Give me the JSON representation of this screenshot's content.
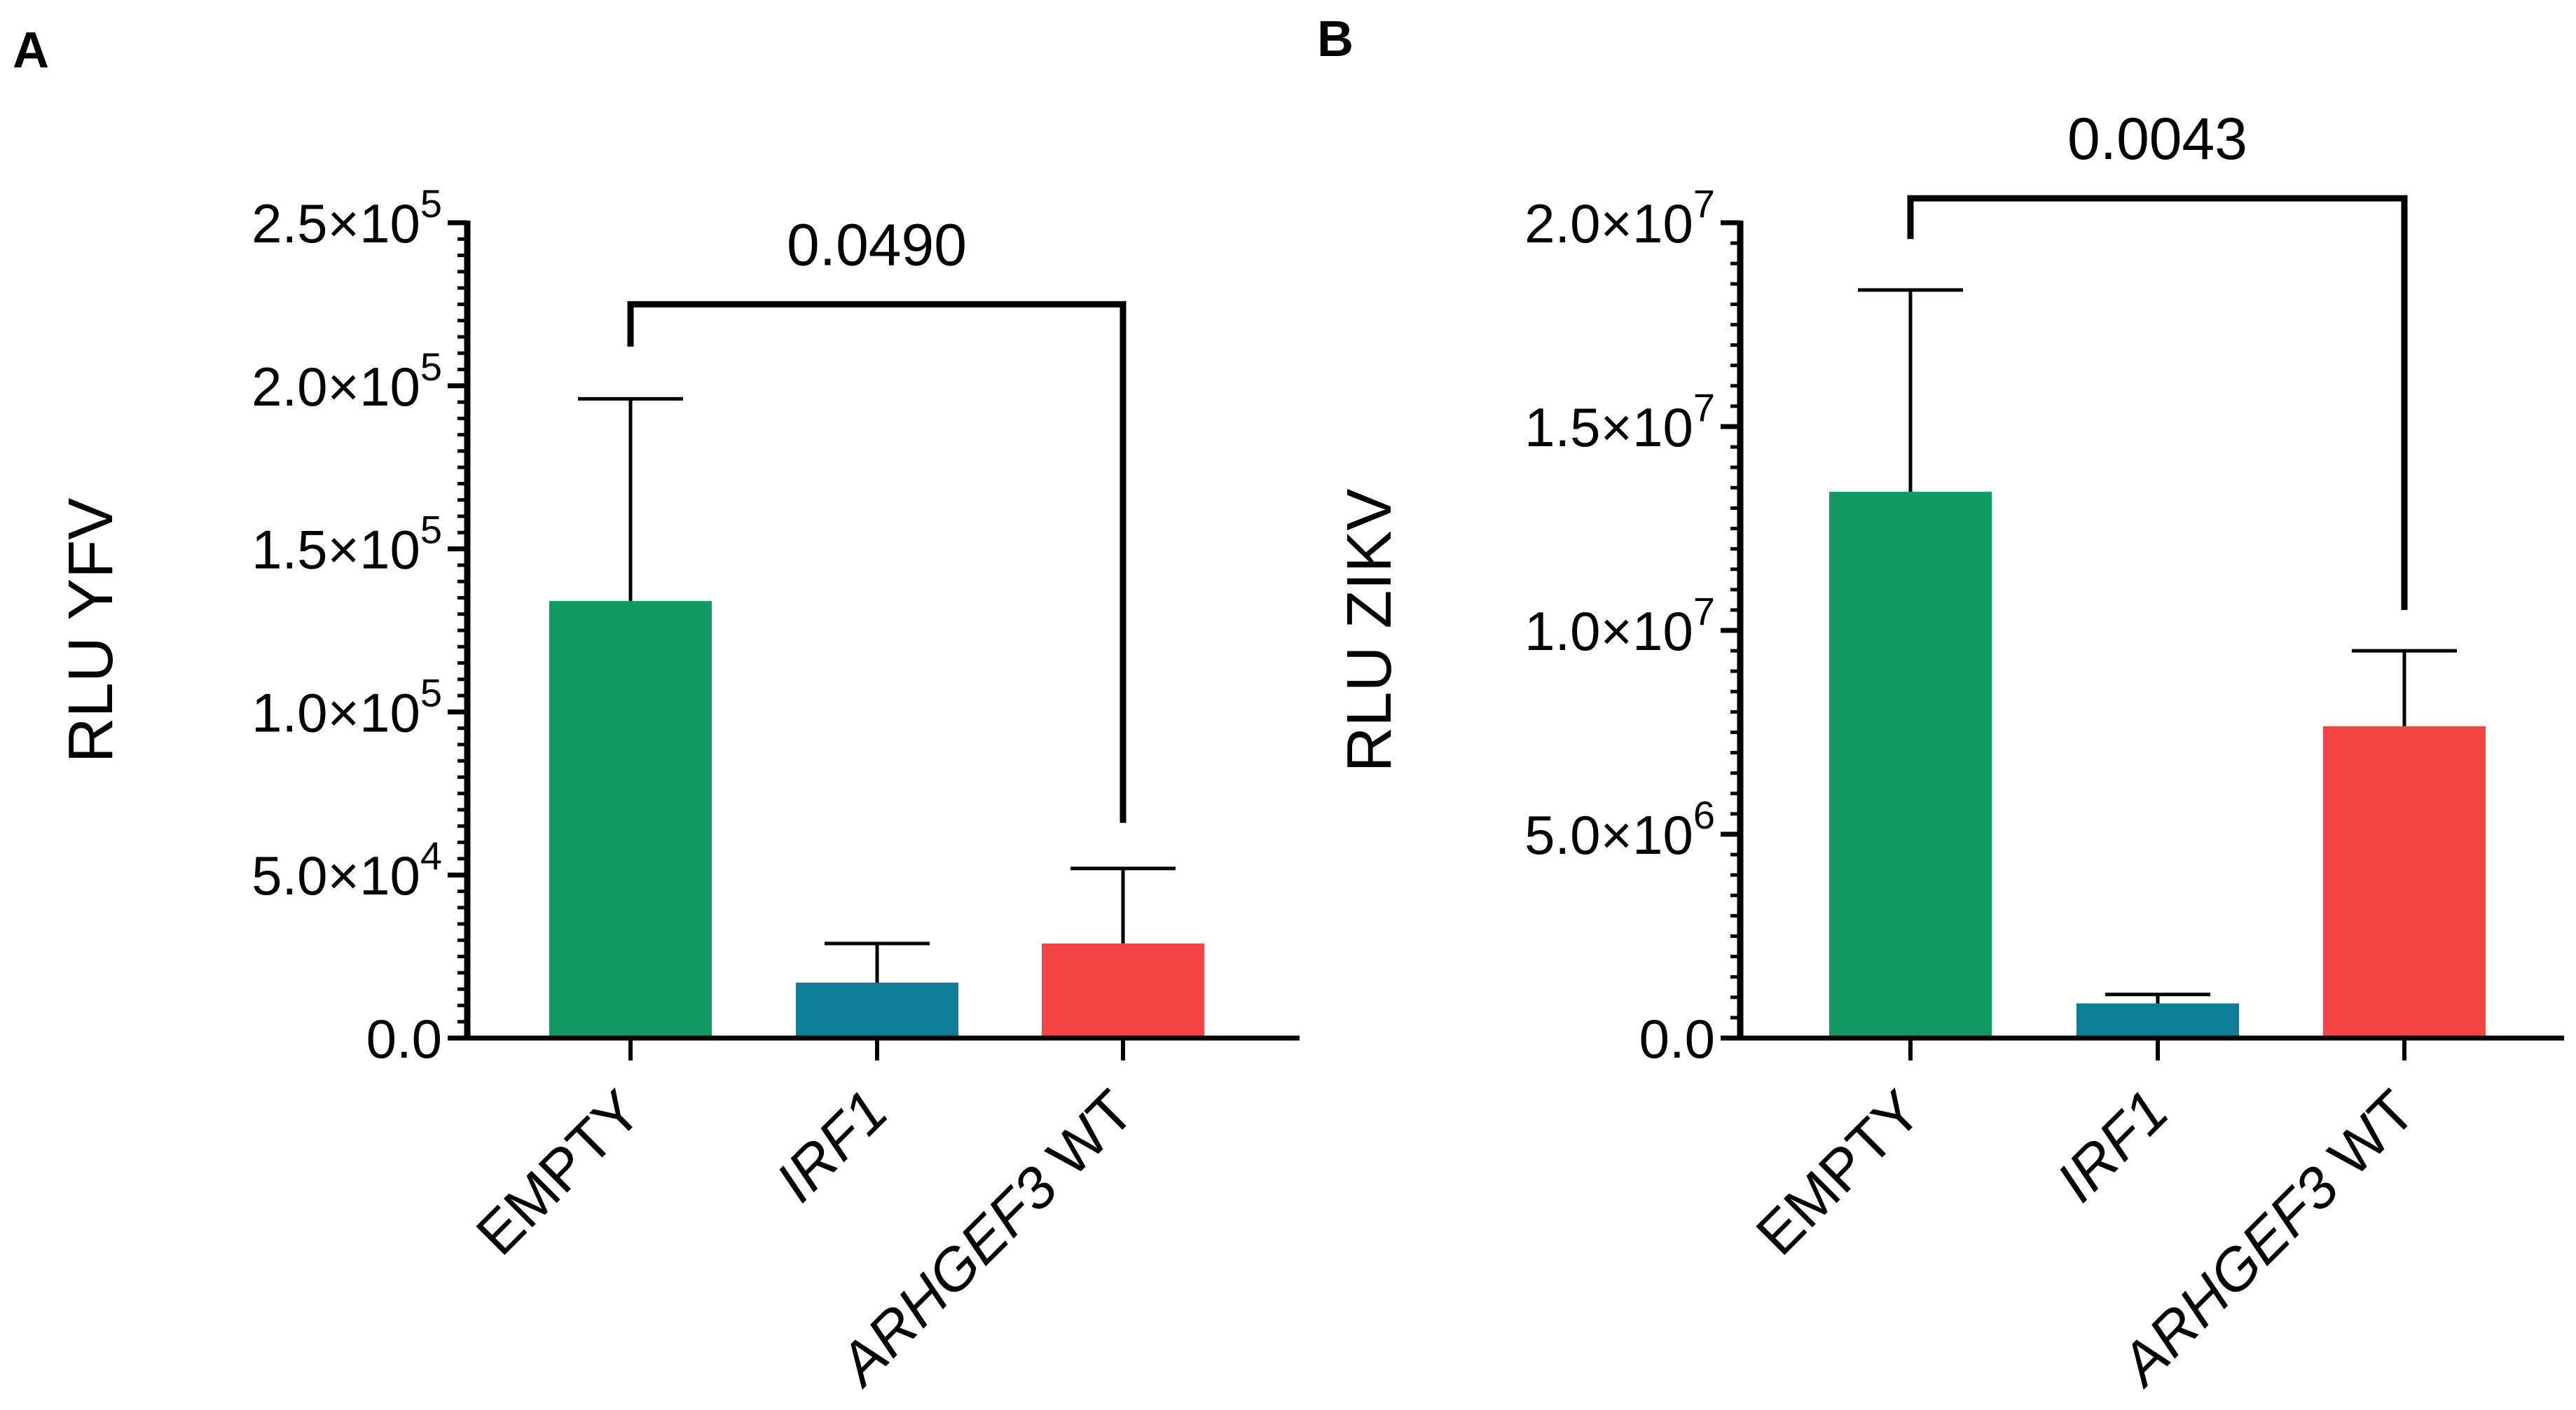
{
  "figure": {
    "panels": [
      "A",
      "B"
    ]
  },
  "chart_data": [
    {
      "panel": "A",
      "type": "bar",
      "title": "",
      "xlabel": "",
      "ylabel": "RLU YFV",
      "categories": [
        "EMPTY",
        "IRF1",
        "ARHGEF3 WT"
      ],
      "italic_categories": [
        "IRF1",
        "ARHGEF3"
      ],
      "category_parts": [
        [
          {
            "text": "EMPTY",
            "italic": false
          }
        ],
        [
          {
            "text": "IRF1",
            "italic": true
          }
        ],
        [
          {
            "text": "ARHGEF3",
            "italic": true
          },
          {
            "text": " WT",
            "italic": false
          }
        ]
      ],
      "values": [
        134000,
        17000,
        29000
      ],
      "errors": [
        62000,
        12000,
        23000
      ],
      "colors": [
        "#109960",
        "#0e7e97",
        "#f44444"
      ],
      "ylim": [
        0,
        250000
      ],
      "major_ticks": [
        0,
        50000,
        100000,
        150000,
        200000,
        250000
      ],
      "tick_labels": [
        {
          "mantissa": "0.0",
          "exp": ""
        },
        {
          "mantissa": "5.0×10",
          "exp": "4"
        },
        {
          "mantissa": "1.0×10",
          "exp": "5"
        },
        {
          "mantissa": "1.5×10",
          "exp": "5"
        },
        {
          "mantissa": "2.0×10",
          "exp": "5"
        },
        {
          "mantissa": "2.5×10",
          "exp": "5"
        }
      ],
      "minor_tick_count": 10,
      "comparison": {
        "from": 0,
        "to": 2,
        "label": "0.0490",
        "bracket_value": 225000,
        "from_drop": 212000,
        "to_drop": 66000
      }
    },
    {
      "panel": "B",
      "type": "bar",
      "title": "",
      "xlabel": "",
      "ylabel": "RLU ZIKV",
      "categories": [
        "EMPTY",
        "IRF1",
        "ARHGEF3 WT"
      ],
      "italic_categories": [
        "IRF1",
        "ARHGEF3"
      ],
      "category_parts": [
        [
          {
            "text": "EMPTY",
            "italic": false
          }
        ],
        [
          {
            "text": "IRF1",
            "italic": true
          }
        ],
        [
          {
            "text": "ARHGEF3",
            "italic": true
          },
          {
            "text": " WT",
            "italic": false
          }
        ]
      ],
      "values": [
        13400000,
        850000,
        7650000
      ],
      "errors": [
        4950000,
        220000,
        1850000
      ],
      "colors": [
        "#109960",
        "#0e7e97",
        "#f44444"
      ],
      "ylim": [
        0,
        20000000
      ],
      "major_ticks": [
        0,
        5000000,
        10000000,
        15000000,
        20000000
      ],
      "tick_labels": [
        {
          "mantissa": "0.0",
          "exp": ""
        },
        {
          "mantissa": "5.0×10",
          "exp": "6"
        },
        {
          "mantissa": "1.0×10",
          "exp": "7"
        },
        {
          "mantissa": "1.5×10",
          "exp": "7"
        },
        {
          "mantissa": "2.0×10",
          "exp": "7"
        }
      ],
      "minor_tick_count": 10,
      "comparison": {
        "from": 0,
        "to": 2,
        "label": "0.0043",
        "bracket_value": 20600000,
        "from_drop": 19600000,
        "to_drop": 10500000
      }
    }
  ]
}
